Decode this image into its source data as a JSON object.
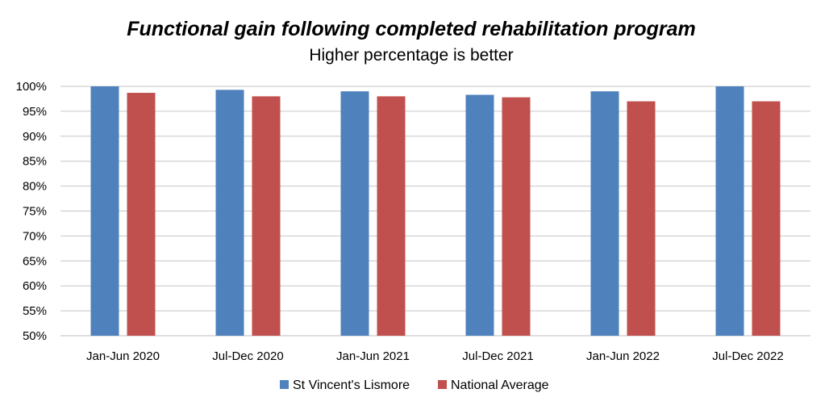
{
  "chart_data": {
    "type": "bar",
    "title": "Functional gain following completed rehabilitation program",
    "subtitle": "Higher percentage is better",
    "categories": [
      "Jan-Jun 2020",
      "Jul-Dec 2020",
      "Jan-Jun 2021",
      "Jul-Dec 2021",
      "Jan-Jun 2022",
      "Jul-Dec 2022"
    ],
    "series": [
      {
        "name": "St Vincent's Lismore",
        "color": "#4f81bd",
        "values": [
          100,
          99.3,
          99.0,
          98.3,
          99.0,
          100
        ]
      },
      {
        "name": "National Average",
        "color": "#c0504d",
        "values": [
          98.7,
          98.0,
          98.0,
          97.8,
          97.0,
          97.0
        ]
      }
    ],
    "ylim": [
      50,
      100
    ],
    "yticks": [
      "50%",
      "55%",
      "60%",
      "65%",
      "70%",
      "75%",
      "80%",
      "85%",
      "90%",
      "95%",
      "100%"
    ],
    "grid": true,
    "legend": "bottom"
  }
}
